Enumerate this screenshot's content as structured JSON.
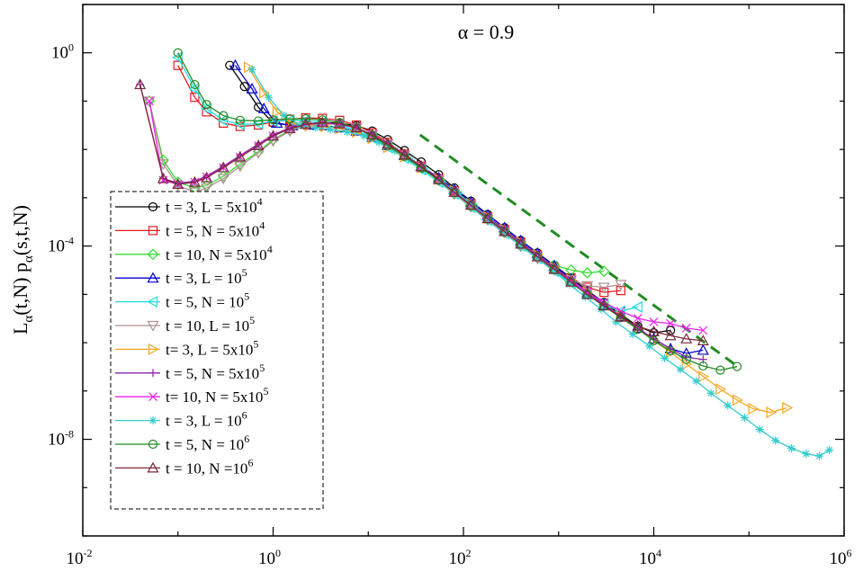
{
  "chart_data": {
    "type": "line",
    "title": "α = 0.9",
    "xlabel": "",
    "ylabel": {
      "main": "L",
      "sub1": "α",
      "mid": "(t,N) p",
      "sub2": "α",
      "end": "(s,t,N)"
    },
    "xscale": "log",
    "yscale": "log",
    "xlim": [
      0.01,
      1000000
    ],
    "ylim": [
      1e-10,
      10
    ],
    "x_ticks": [
      {
        "base": "10",
        "exp": "-2",
        "value": 0.01
      },
      {
        "base": "10",
        "exp": "0",
        "value": 1
      },
      {
        "base": "10",
        "exp": "2",
        "value": 100
      },
      {
        "base": "10",
        "exp": "4",
        "value": 10000
      },
      {
        "base": "10",
        "exp": "6",
        "value": 1000000
      }
    ],
    "y_ticks": [
      {
        "base": "10",
        "exp": "0",
        "value": 1
      },
      {
        "base": "10",
        "exp": "-4",
        "value": 0.0001
      },
      {
        "base": "10",
        "exp": "-8",
        "value": 1e-08
      }
    ],
    "legend_position": "left",
    "series": [
      {
        "name": "t = 3, L = 5x10",
        "exp": "4",
        "color": "#000000",
        "marker": "circle",
        "x": [
          0.35,
          0.5,
          0.7,
          1.0,
          1.5,
          2.2,
          3.3,
          5,
          7.5,
          11,
          16,
          24,
          36,
          55,
          80,
          120,
          180,
          270,
          400,
          600,
          900,
          1350,
          2000,
          3000,
          4500,
          6800,
          10000,
          15000
        ],
        "y": [
          0.55,
          0.2,
          0.075,
          0.035,
          0.032,
          0.034,
          0.036,
          0.035,
          0.031,
          0.024,
          0.016,
          0.0095,
          0.0055,
          0.003,
          0.0016,
          0.00085,
          0.00045,
          0.00024,
          0.00013,
          7.2e-05,
          4e-05,
          2.2e-05,
          1.2e-05,
          6.8e-06,
          3.8e-06,
          2.2e-06,
          1.6e-06,
          1.8e-06
        ]
      },
      {
        "name": "t = 5, N = 5x10",
        "exp": "4",
        "color": "#e31a1c",
        "marker": "square",
        "x": [
          0.1,
          0.15,
          0.2,
          0.3,
          0.45,
          0.7,
          1.0,
          1.5,
          2.2,
          3.3,
          5,
          7.5,
          11,
          16,
          24,
          36,
          55,
          80,
          120,
          180,
          270,
          400,
          600,
          900,
          1350,
          2000,
          3000,
          4500
        ],
        "y": [
          0.55,
          0.12,
          0.06,
          0.035,
          0.03,
          0.032,
          0.037,
          0.042,
          0.045,
          0.044,
          0.04,
          0.032,
          0.022,
          0.014,
          0.008,
          0.0045,
          0.0025,
          0.0014,
          0.00075,
          0.0004,
          0.00022,
          0.00012,
          6.5e-05,
          3.6e-05,
          2.2e-05,
          1.4e-05,
          1.1e-05,
          1.2e-05
        ]
      },
      {
        "name": "t = 10, N = 5x10",
        "exp": "4",
        "color": "#33dd33",
        "marker": "diamond",
        "x": [
          0.05,
          0.07,
          0.1,
          0.15,
          0.2,
          0.3,
          0.45,
          0.7,
          1.0,
          1.5,
          2.2,
          3.3,
          5,
          7.5,
          11,
          16,
          24,
          36,
          55,
          80,
          120,
          180,
          270,
          400,
          600,
          900,
          1350,
          2000,
          3000
        ],
        "y": [
          0.1,
          0.006,
          0.0021,
          0.0016,
          0.0018,
          0.0028,
          0.005,
          0.009,
          0.016,
          0.025,
          0.032,
          0.035,
          0.034,
          0.028,
          0.02,
          0.013,
          0.0075,
          0.0042,
          0.0023,
          0.0012,
          0.00065,
          0.00035,
          0.00019,
          0.0001,
          6e-05,
          4e-05,
          3.2e-05,
          2.8e-05,
          3e-05
        ]
      },
      {
        "name": "t = 3, L = 10",
        "exp": "5",
        "color": "#0000cc",
        "marker": "triangle-up",
        "x": [
          0.4,
          0.6,
          0.8,
          1.1,
          1.6,
          2.4,
          3.5,
          5,
          7.5,
          11,
          16,
          24,
          36,
          55,
          80,
          120,
          180,
          270,
          400,
          600,
          900,
          1350,
          2000,
          3000,
          4500,
          6800,
          10000,
          15000,
          22000,
          33000
        ],
        "y": [
          0.55,
          0.18,
          0.07,
          0.035,
          0.031,
          0.032,
          0.031,
          0.028,
          0.024,
          0.018,
          0.012,
          0.0075,
          0.0045,
          0.0026,
          0.0015,
          0.00082,
          0.00044,
          0.00024,
          0.00013,
          7.1e-05,
          3.9e-05,
          2.1e-05,
          1.1e-05,
          6.2e-06,
          3.5e-06,
          2e-06,
          1.2e-06,
          7.5e-07,
          6e-07,
          7e-07
        ]
      },
      {
        "name": "t = 5, N = 10",
        "exp": "5",
        "color": "#22dddd",
        "marker": "triangle-left",
        "x": [
          0.1,
          0.15,
          0.2,
          0.3,
          0.45,
          0.7,
          1.0,
          1.5,
          2.2,
          3.3,
          5,
          7.5,
          11,
          16,
          24,
          36,
          55,
          80,
          120,
          180,
          270,
          400,
          600,
          900,
          1350,
          2000,
          3000,
          4500,
          6800
        ],
        "y": [
          0.8,
          0.18,
          0.07,
          0.04,
          0.033,
          0.034,
          0.038,
          0.04,
          0.04,
          0.037,
          0.032,
          0.025,
          0.017,
          0.011,
          0.0066,
          0.0038,
          0.0021,
          0.0012,
          0.00063,
          0.00034,
          0.00018,
          0.0001,
          5.5e-05,
          3e-05,
          1.7e-05,
          1e-05,
          6.2e-06,
          4.5e-06,
          5.5e-06
        ]
      },
      {
        "name": "t = 10, L = 10",
        "exp": "5",
        "color": "#b09090",
        "marker": "triangle-down",
        "x": [
          0.05,
          0.07,
          0.1,
          0.15,
          0.2,
          0.3,
          0.45,
          0.7,
          1.0,
          1.5,
          2.2,
          3.3,
          5,
          7.5,
          11,
          16,
          24,
          36,
          55,
          80,
          120,
          180,
          270,
          400,
          600,
          900,
          1350,
          2000,
          3000,
          4500
        ],
        "y": [
          0.1,
          0.005,
          0.0018,
          0.0013,
          0.0016,
          0.0025,
          0.0045,
          0.0085,
          0.015,
          0.024,
          0.031,
          0.034,
          0.033,
          0.028,
          0.02,
          0.013,
          0.0076,
          0.0043,
          0.0023,
          0.0012,
          0.00066,
          0.00035,
          0.00019,
          0.0001,
          5.5e-05,
          3.2e-05,
          2e-05,
          1.5e-05,
          1.4e-05,
          1.6e-05
        ]
      },
      {
        "name": "t= 3, L = 5x10",
        "exp": "5",
        "color": "#f5a623",
        "marker": "triangle-right",
        "x": [
          0.55,
          0.8,
          1.1,
          1.6,
          2.4,
          3.5,
          5,
          7.5,
          11,
          16,
          24,
          36,
          55,
          80,
          120,
          180,
          270,
          400,
          600,
          900,
          1350,
          2000,
          3000,
          4500,
          6800,
          10000,
          15000,
          22000,
          33000,
          50000,
          75000,
          110000,
          170000,
          250000
        ],
        "y": [
          0.5,
          0.15,
          0.06,
          0.035,
          0.031,
          0.03,
          0.027,
          0.023,
          0.017,
          0.011,
          0.007,
          0.0042,
          0.0024,
          0.0014,
          0.00075,
          0.0004,
          0.00022,
          0.00012,
          6.5e-05,
          3.6e-05,
          2e-05,
          1.1e-05,
          6.2e-06,
          3.5e-06,
          2e-06,
          1.1e-06,
          6.3e-07,
          3.6e-07,
          2e-07,
          1.1e-07,
          6.5e-08,
          4.3e-08,
          3.6e-08,
          4.5e-08
        ]
      },
      {
        "name": "t = 5, N = 5x10",
        "exp": "5",
        "color": "#8e24aa",
        "marker": "plus",
        "x": [
          0.04,
          0.07,
          0.1,
          0.15,
          0.2,
          0.3,
          0.45,
          0.7,
          1.0,
          1.5,
          2.2,
          3.3,
          5,
          7.5,
          11,
          16,
          24,
          36,
          55,
          80,
          120,
          180,
          270,
          400,
          600,
          900,
          1350,
          2000,
          3000,
          4500,
          6800,
          10000,
          15000,
          22000,
          33000
        ],
        "y": [
          0.22,
          0.0025,
          0.002,
          0.0022,
          0.0028,
          0.0045,
          0.0075,
          0.013,
          0.02,
          0.028,
          0.034,
          0.036,
          0.034,
          0.028,
          0.02,
          0.013,
          0.0078,
          0.0045,
          0.0025,
          0.0014,
          0.00075,
          0.0004,
          0.00022,
          0.00012,
          6.5e-05,
          3.6e-05,
          2e-05,
          1.1e-05,
          6.2e-06,
          3.5e-06,
          2e-06,
          1.2e-06,
          7.5e-07,
          5e-07,
          4.5e-07
        ]
      },
      {
        "name": "t= 10, N = 5x10",
        "exp": "5",
        "color": "#ee22ee",
        "marker": "x",
        "x": [
          0.05,
          0.07,
          0.1,
          0.15,
          0.2,
          0.3,
          0.45,
          0.7,
          1.0,
          1.5,
          2.2,
          3.3,
          5,
          7.5,
          11,
          16,
          24,
          36,
          55,
          80,
          120,
          180,
          270,
          400,
          600,
          900,
          1350,
          2000,
          3000,
          4500,
          6800,
          10000,
          15000,
          22000,
          33000
        ],
        "y": [
          0.1,
          0.0023,
          0.0019,
          0.0021,
          0.0027,
          0.0042,
          0.007,
          0.012,
          0.019,
          0.027,
          0.033,
          0.035,
          0.033,
          0.028,
          0.02,
          0.013,
          0.0077,
          0.0044,
          0.0024,
          0.0013,
          0.0007,
          0.00037,
          0.0002,
          0.00011,
          6e-05,
          3.3e-05,
          1.9e-05,
          1.1e-05,
          6.8e-06,
          4.5e-06,
          3.2e-06,
          2.7e-06,
          2.5e-06,
          2e-06,
          1.8e-06
        ]
      },
      {
        "name": "t = 3, L = 10",
        "exp": "6",
        "color": "#33cccc",
        "marker": "asterisk",
        "x": [
          0.6,
          0.9,
          1.3,
          1.9,
          2.8,
          4,
          6,
          9,
          13,
          19,
          28,
          40,
          60,
          90,
          130,
          190,
          280,
          400,
          600,
          900,
          1300,
          1900,
          2800,
          4000,
          6000,
          9000,
          13000,
          19000,
          28000,
          40000,
          60000,
          90000,
          130000,
          190000,
          280000,
          400000,
          550000,
          700000
        ],
        "y": [
          0.45,
          0.12,
          0.05,
          0.032,
          0.028,
          0.026,
          0.023,
          0.019,
          0.014,
          0.0095,
          0.006,
          0.0037,
          0.0021,
          0.0012,
          0.00065,
          0.00035,
          0.00019,
          0.0001,
          5.5e-05,
          3e-05,
          1.6e-05,
          8.9e-06,
          4.9e-06,
          2.7e-06,
          1.5e-06,
          8.5e-07,
          4.8e-07,
          2.8e-07,
          1.6e-07,
          9e-08,
          5e-08,
          2.8e-08,
          1.6e-08,
          9.5e-09,
          6.5e-09,
          5e-09,
          4.5e-09,
          6e-09
        ]
      },
      {
        "name": "t = 5, N = 10",
        "exp": "6",
        "color": "#228b22",
        "marker": "circle",
        "x": [
          0.1,
          0.15,
          0.2,
          0.3,
          0.45,
          0.7,
          1.0,
          1.5,
          2.2,
          3.3,
          5,
          7.5,
          11,
          16,
          24,
          36,
          55,
          80,
          120,
          180,
          270,
          400,
          600,
          900,
          1350,
          2000,
          3000,
          4500,
          6800,
          10000,
          15000,
          22000,
          33000,
          50000,
          75000
        ],
        "y": [
          1.0,
          0.22,
          0.085,
          0.05,
          0.04,
          0.039,
          0.041,
          0.043,
          0.043,
          0.041,
          0.036,
          0.028,
          0.019,
          0.012,
          0.0072,
          0.0041,
          0.0023,
          0.0013,
          0.0007,
          0.00037,
          0.0002,
          0.00011,
          6e-05,
          3.3e-05,
          1.8e-05,
          1e-05,
          5.7e-06,
          3.3e-06,
          1.9e-06,
          1.1e-06,
          6.8e-07,
          4.5e-07,
          3.3e-07,
          2.7e-07,
          3.2e-07
        ]
      },
      {
        "name": "t = 10, N =10",
        "exp": "6",
        "color": "#7a2a3a",
        "marker": "triangle-up-thin",
        "x": [
          0.04,
          0.07,
          0.1,
          0.15,
          0.2,
          0.3,
          0.45,
          0.7,
          1.0,
          1.5,
          2.2,
          3.3,
          5,
          7.5,
          11,
          16,
          24,
          36,
          55,
          80,
          120,
          180,
          270,
          400,
          600,
          900,
          1350,
          2000,
          3000,
          4500,
          6800,
          10000,
          15000,
          22000,
          33000
        ],
        "y": [
          0.22,
          0.0025,
          0.0019,
          0.0021,
          0.0026,
          0.0042,
          0.007,
          0.012,
          0.019,
          0.027,
          0.033,
          0.036,
          0.034,
          0.028,
          0.02,
          0.013,
          0.0077,
          0.0044,
          0.0024,
          0.0013,
          0.0007,
          0.00037,
          0.0002,
          0.00011,
          6e-05,
          3.3e-05,
          1.8e-05,
          1e-05,
          5.8e-06,
          3.4e-06,
          2.2e-06,
          1.7e-06,
          1.4e-06,
          1.2e-06,
          1.1e-06
        ]
      }
    ],
    "reference_line": {
      "style": "dashed",
      "color": "#228b22",
      "x": [
        35,
        80000
      ],
      "y": [
        0.02,
        3e-07
      ]
    }
  }
}
